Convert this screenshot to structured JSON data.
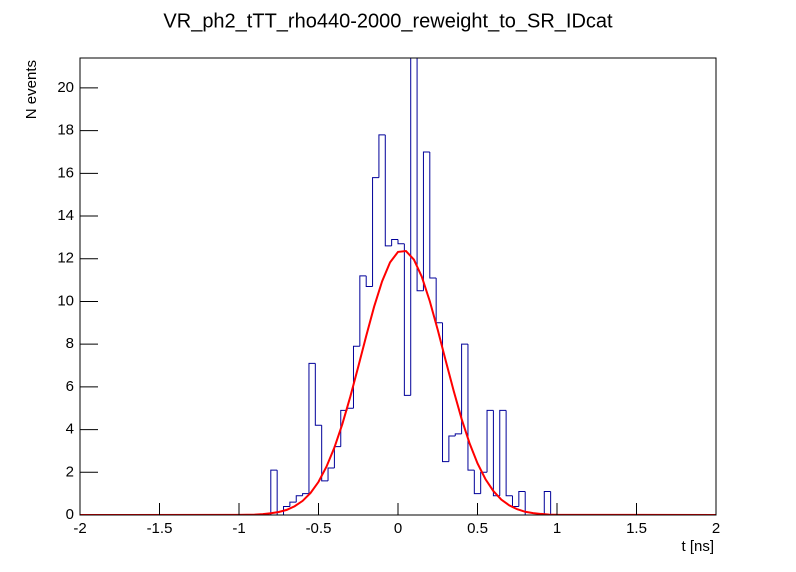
{
  "chart_data": {
    "type": "histogram",
    "title": "VR_ph2_tTT_rho440-2000_reweight_to_SR_IDcat",
    "x_label": "t [ns]",
    "y_label": "N events",
    "xlim": [
      -2,
      2
    ],
    "ylim": [
      0,
      21.4
    ],
    "xticks": [
      -2,
      -1.5,
      -1,
      -0.5,
      0,
      0.5,
      1,
      1.5,
      2
    ],
    "yticks": [
      0,
      2,
      4,
      6,
      8,
      10,
      12,
      14,
      16,
      18,
      20
    ],
    "color": "#000099",
    "bins": [
      -2,
      -1.96,
      -1.92,
      -1.88,
      -1.84,
      -1.8,
      -1.76,
      -1.72,
      -1.68,
      -1.64,
      -1.6,
      -1.56,
      -1.52,
      -1.48,
      -1.44,
      -1.4,
      -1.36,
      -1.32,
      -1.28,
      -1.24,
      -1.2,
      -1.16,
      -1.12,
      -1.08,
      -1.04,
      -1,
      -0.96,
      -0.92,
      -0.88,
      -0.84,
      -0.8,
      -0.76,
      -0.72,
      -0.68,
      -0.64,
      -0.6,
      -0.56,
      -0.52,
      -0.48,
      -0.44,
      -0.4,
      -0.36,
      -0.32,
      -0.28,
      -0.24,
      -0.2,
      -0.16,
      -0.12,
      -0.08,
      -0.04,
      0,
      0.04,
      0.08,
      0.12,
      0.16,
      0.2,
      0.24,
      0.28,
      0.32,
      0.36,
      0.4,
      0.44,
      0.48,
      0.52,
      0.56,
      0.6,
      0.64,
      0.68,
      0.72,
      0.76,
      0.8,
      0.84,
      0.88,
      0.92,
      0.96,
      1,
      1.04,
      1.08,
      1.12,
      1.16,
      1.2,
      1.24,
      1.28,
      1.32,
      1.36,
      1.4,
      1.44,
      1.48,
      1.52,
      1.56,
      1.6,
      1.64,
      1.68,
      1.72,
      1.76,
      1.8,
      1.84,
      1.88,
      1.92,
      1.96,
      2
    ],
    "values": [
      0,
      0,
      0,
      0,
      0,
      0,
      0,
      0,
      0,
      0,
      0,
      0,
      0,
      0,
      0,
      0,
      0,
      0,
      0,
      0,
      0,
      0,
      0,
      0,
      0,
      0,
      0,
      0,
      0,
      0,
      2.1,
      0,
      0.4,
      0.6,
      0.9,
      1.0,
      7.1,
      4.2,
      1.6,
      2.2,
      3.2,
      4.9,
      5.0,
      7.9,
      11.2,
      10.7,
      15.8,
      17.8,
      12.6,
      12.9,
      12.7,
      5.6,
      22,
      10.5,
      17.0,
      11.1,
      9.0,
      2.5,
      3.7,
      3.8,
      8.0,
      2.1,
      1.0,
      2.0,
      4.9,
      0.9,
      4.9,
      0.9,
      0.4,
      1.1,
      0,
      0,
      0,
      1.1,
      0,
      0,
      0,
      0,
      0,
      0,
      0,
      0,
      0,
      0,
      0,
      0,
      0,
      0,
      0,
      0,
      0,
      0,
      0,
      0,
      0,
      0,
      0,
      0,
      0,
      0
    ],
    "fit": {
      "color": "#ff0000",
      "x": [
        -2,
        -1,
        -0.95,
        -0.9,
        -0.85,
        -0.8,
        -0.75,
        -0.7,
        -0.65,
        -0.6,
        -0.55,
        -0.5,
        -0.45,
        -0.4,
        -0.35,
        -0.3,
        -0.25,
        -0.2,
        -0.15,
        -0.1,
        -0.05,
        0,
        0.05,
        0.1,
        0.15,
        0.2,
        0.25,
        0.3,
        0.35,
        0.4,
        0.45,
        0.5,
        0.55,
        0.6,
        0.65,
        0.7,
        0.75,
        0.8,
        0.85,
        0.9,
        0.95,
        1,
        2
      ],
      "y": [
        0,
        0.005,
        0.01,
        0.02,
        0.04,
        0.08,
        0.14,
        0.24,
        0.41,
        0.66,
        1.03,
        1.55,
        2.26,
        3.16,
        4.26,
        5.54,
        6.94,
        8.38,
        9.76,
        10.94,
        11.83,
        12.32,
        12.36,
        11.96,
        11.15,
        10.01,
        8.67,
        7.23,
        5.82,
        4.5,
        3.36,
        2.42,
        1.68,
        1.12,
        0.72,
        0.45,
        0.27,
        0.15,
        0.09,
        0.05,
        0.02,
        0.01,
        0
      ]
    }
  }
}
